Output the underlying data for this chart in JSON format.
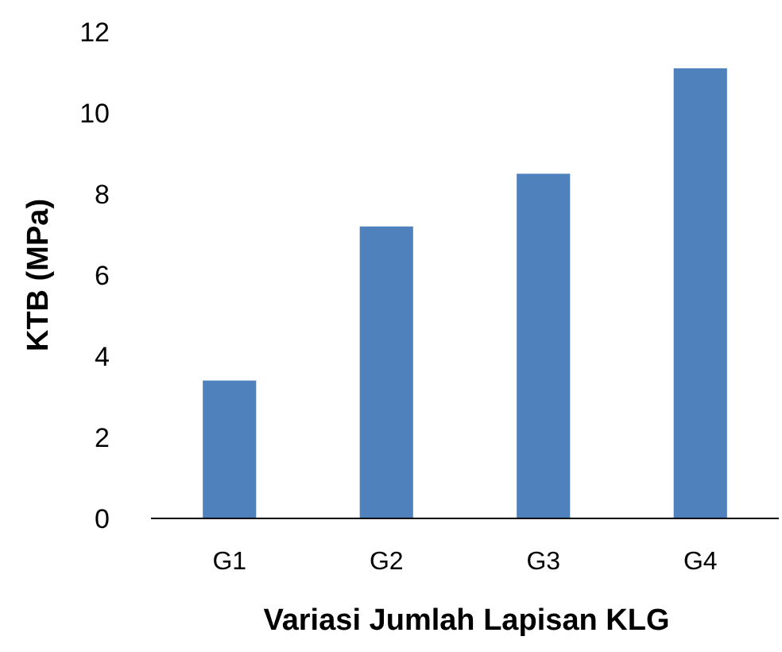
{
  "chart_data": {
    "type": "bar",
    "xlabel": "Variasi Jumlah Lapisan KLG",
    "ylabel": "KTB (MPa)",
    "categories": [
      "G1",
      "G2",
      "G3",
      "G4"
    ],
    "values": [
      3.4,
      7.2,
      8.5,
      11.1
    ],
    "color": "#4f81bd",
    "ylim": [
      0,
      12
    ],
    "yticks": [
      0,
      2,
      4,
      6,
      8,
      10,
      12
    ],
    "grid": false
  }
}
